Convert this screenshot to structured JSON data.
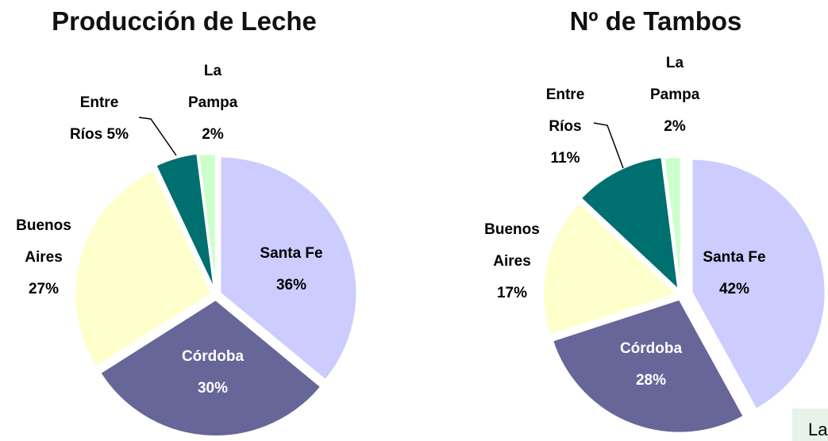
{
  "chart_data": [
    {
      "type": "pie",
      "title": "Producción de Leche",
      "categories": [
        "Santa Fe",
        "Córdoba",
        "Buenos Aires",
        "Entre Ríos",
        "La Pampa"
      ],
      "values": [
        36,
        30,
        27,
        5,
        2
      ],
      "value_labels": [
        "36%",
        "30%",
        "27%",
        "5%",
        "2%"
      ],
      "colors": [
        "#ccccff",
        "#666699",
        "#ffffcc",
        "#006f6f",
        "#ccffcc"
      ]
    },
    {
      "type": "pie",
      "title": "Nº de Tambos",
      "categories": [
        "Santa Fe",
        "Córdoba",
        "Buenos Aires",
        "Entre Ríos",
        "La Pampa"
      ],
      "values": [
        42,
        28,
        17,
        11,
        2
      ],
      "value_labels": [
        "42%",
        "28%",
        "17%",
        "11%",
        "2%"
      ],
      "colors": [
        "#ccccff",
        "#666699",
        "#ffffcc",
        "#006f6f",
        "#ccffcc"
      ]
    }
  ],
  "fragment": "La"
}
